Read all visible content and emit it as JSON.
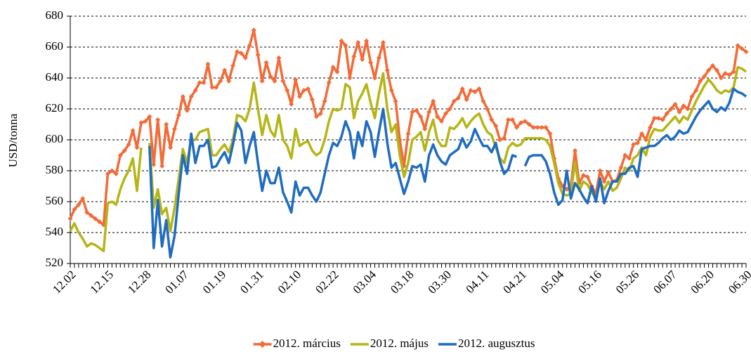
{
  "chart_data": {
    "type": "line",
    "y_label": "USD/tonna",
    "ylim": [
      520,
      680
    ],
    "yticks": [
      520,
      540,
      560,
      580,
      600,
      620,
      640,
      660,
      680
    ],
    "grid": true,
    "legend": "bottom",
    "categories": [
      "12.02",
      null,
      null,
      null,
      null,
      null,
      null,
      null,
      null,
      "12.15",
      null,
      null,
      null,
      null,
      null,
      null,
      null,
      null,
      "12.28",
      null,
      null,
      null,
      null,
      null,
      null,
      null,
      null,
      "01.07",
      null,
      null,
      null,
      null,
      null,
      null,
      null,
      null,
      "01.19",
      null,
      null,
      null,
      null,
      null,
      null,
      null,
      null,
      "01.31",
      null,
      null,
      null,
      null,
      null,
      null,
      null,
      null,
      "02.10",
      null,
      null,
      null,
      null,
      null,
      null,
      null,
      null,
      "02.22",
      null,
      null,
      null,
      null,
      null,
      null,
      null,
      null,
      "03.04",
      null,
      null,
      null,
      null,
      null,
      null,
      null,
      null,
      "03.18",
      null,
      null,
      null,
      null,
      null,
      null,
      null,
      null,
      "03.30",
      null,
      null,
      null,
      null,
      null,
      null,
      null,
      null,
      "04.11",
      null,
      null,
      null,
      null,
      null,
      null,
      null,
      null,
      "04.21",
      null,
      null,
      null,
      null,
      null,
      null,
      null,
      null,
      "05.04",
      null,
      null,
      null,
      null,
      null,
      null,
      null,
      null,
      "05.16",
      null,
      null,
      null,
      null,
      null,
      null,
      null,
      null,
      "05.26",
      null,
      null,
      null,
      null,
      null,
      null,
      null,
      null,
      "06.07",
      null,
      null,
      null,
      null,
      null,
      null,
      null,
      null,
      "06.20",
      null,
      null,
      null,
      null,
      null,
      null,
      null,
      null,
      "06.30"
    ],
    "series": [
      {
        "name": "2012. március",
        "color": "#f26b38",
        "marker": "diamond",
        "values": [
          549,
          555,
          558,
          562,
          553,
          551,
          549,
          547,
          545,
          578,
          580,
          578,
          590,
          593,
          597,
          606,
          595,
          611,
          612,
          615,
          584,
          613,
          583,
          610,
          595,
          607,
          616,
          628,
          619,
          628,
          632,
          637,
          637,
          649,
          634,
          634,
          638,
          645,
          638,
          648,
          657,
          656,
          653,
          661,
          671,
          655,
          638,
          650,
          641,
          638,
          653,
          638,
          632,
          623,
          639,
          628,
          632,
          633,
          626,
          615,
          617,
          625,
          637,
          647,
          644,
          664,
          661,
          640,
          654,
          663,
          652,
          664,
          650,
          640,
          653,
          663,
          645,
          632,
          625,
          600,
          583,
          604,
          618,
          619,
          615,
          607,
          618,
          625,
          615,
          612,
          617,
          620,
          625,
          627,
          633,
          626,
          632,
          631,
          633,
          625,
          620,
          613,
          609,
          600,
          601,
          613,
          613,
          608,
          611,
          612,
          610,
          608,
          608,
          608,
          608,
          604,
          588,
          575,
          570,
          568,
          570,
          593,
          572,
          577,
          576,
          570,
          565,
          580,
          573,
          579,
          573,
          574,
          582,
          590,
          588,
          597,
          598,
          604,
          600,
          608,
          614,
          614,
          613,
          617,
          620,
          623,
          618,
          622,
          620,
          628,
          632,
          638,
          641,
          645,
          648,
          645,
          640,
          643,
          642,
          644,
          661,
          659,
          657
        ]
      },
      {
        "name": "2012. május",
        "color": "#b5b518",
        "values": [
          541,
          546,
          540,
          536,
          531,
          533,
          532,
          530,
          528,
          559,
          560,
          558,
          568,
          575,
          580,
          588,
          567,
          595,
          null,
          598,
          556,
          568,
          552,
          556,
          541,
          556,
          575,
          594,
          585,
          600,
          600,
          605,
          606,
          607,
          590,
          590,
          594,
          597,
          592,
          600,
          616,
          615,
          612,
          620,
          637,
          620,
          603,
          616,
          606,
          602,
          616,
          600,
          596,
          588,
          607,
          596,
          598,
          599,
          593,
          590,
          592,
          600,
          612,
          620,
          619,
          620,
          636,
          634,
          614,
          625,
          630,
          636,
          624,
          614,
          630,
          643,
          620,
          605,
          610,
          590,
          576,
          585,
          600,
          602,
          605,
          593,
          605,
          613,
          600,
          596,
          596,
          608,
          607,
          610,
          614,
          608,
          612,
          615,
          617,
          610,
          605,
          603,
          595,
          588,
          585,
          595,
          598,
          596,
          597,
          601,
          601,
          601,
          601,
          601,
          600,
          596,
          585,
          572,
          565,
          564,
          565,
          586,
          567,
          573,
          571,
          566,
          562,
          573,
          568,
          573,
          567,
          569,
          575,
          582,
          580,
          588,
          590,
          595,
          590,
          602,
          607,
          606,
          606,
          609,
          612,
          615,
          611,
          615,
          613,
          619,
          625,
          630,
          635,
          639,
          636,
          632,
          630,
          632,
          631,
          634,
          647,
          646,
          644
        ]
      },
      {
        "name": "2012. augusztus",
        "color": "#1f6cc0",
        "values": [
          null,
          null,
          null,
          null,
          null,
          null,
          null,
          null,
          null,
          null,
          null,
          null,
          null,
          null,
          null,
          null,
          null,
          null,
          null,
          596,
          530,
          561,
          531,
          548,
          524,
          538,
          565,
          590,
          578,
          604,
          585,
          596,
          596,
          600,
          582,
          583,
          588,
          592,
          585,
          597,
          611,
          606,
          585,
          596,
          605,
          585,
          567,
          580,
          572,
          572,
          582,
          566,
          560,
          553,
          573,
          564,
          569,
          569,
          564,
          560,
          566,
          578,
          590,
          598,
          596,
          602,
          612,
          605,
          588,
          605,
          596,
          612,
          605,
          589,
          605,
          620,
          598,
          582,
          585,
          575,
          565,
          573,
          583,
          582,
          584,
          573,
          590,
          597,
          590,
          586,
          584,
          590,
          592,
          594,
          601,
          595,
          599,
          607,
          601,
          596,
          596,
          592,
          598,
          586,
          578,
          581,
          590,
          589,
          null,
          583,
          589,
          590,
          590,
          590,
          586,
          578,
          566,
          558,
          561,
          580,
          562,
          572,
          568,
          563,
          559,
          570,
          560,
          575,
          559,
          567,
          573,
          573,
          578,
          578,
          582,
          583,
          576,
          594,
          595,
          596,
          596,
          598,
          601,
          603,
          600,
          602,
          606,
          604,
          605,
          610,
          615,
          619,
          622,
          625,
          620,
          618,
          621,
          619,
          624,
          633,
          631,
          630,
          628
        ]
      }
    ]
  }
}
